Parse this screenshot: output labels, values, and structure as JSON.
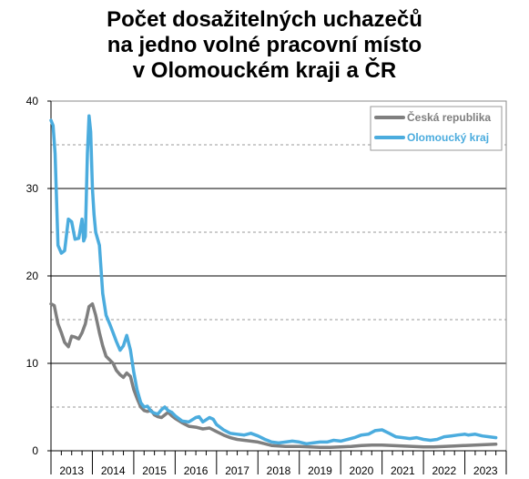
{
  "chart_data": {
    "type": "line",
    "title_lines": [
      "Počet dosažitelných uchazečů",
      "na jedno volné pracovní místo",
      "v Olomouckém kraji a ČR"
    ],
    "xlabel": "",
    "ylabel": "",
    "ylim": [
      0,
      40
    ],
    "y_ticks": [
      0,
      10,
      20,
      30,
      40
    ],
    "y_minor_gridlines": [
      5,
      15,
      25,
      35
    ],
    "xlim": [
      2013,
      2024
    ],
    "x_tick_labels": [
      "2013",
      "2014",
      "2015",
      "2016",
      "2017",
      "2018",
      "2019",
      "2020",
      "2021",
      "2022",
      "2023"
    ],
    "grid": true,
    "legend_position": "top-right",
    "series": [
      {
        "name": "Česká republika",
        "color": "#7f7f7f",
        "points": [
          [
            2013.0,
            16.8
          ],
          [
            2013.08,
            16.6
          ],
          [
            2013.17,
            14.5
          ],
          [
            2013.25,
            13.5
          ],
          [
            2013.33,
            12.4
          ],
          [
            2013.42,
            11.9
          ],
          [
            2013.5,
            13.1
          ],
          [
            2013.58,
            13.0
          ],
          [
            2013.67,
            12.8
          ],
          [
            2013.75,
            13.5
          ],
          [
            2013.83,
            14.5
          ],
          [
            2013.92,
            16.5
          ],
          [
            2014.0,
            16.8
          ],
          [
            2014.08,
            15.5
          ],
          [
            2014.17,
            13.5
          ],
          [
            2014.25,
            12.0
          ],
          [
            2014.33,
            10.8
          ],
          [
            2014.42,
            10.4
          ],
          [
            2014.5,
            10.0
          ],
          [
            2014.58,
            9.2
          ],
          [
            2014.67,
            8.7
          ],
          [
            2014.75,
            8.4
          ],
          [
            2014.83,
            8.9
          ],
          [
            2014.92,
            8.5
          ],
          [
            2015.0,
            7.0
          ],
          [
            2015.08,
            6.0
          ],
          [
            2015.17,
            5.0
          ],
          [
            2015.25,
            4.6
          ],
          [
            2015.33,
            4.5
          ],
          [
            2015.42,
            4.6
          ],
          [
            2015.5,
            4.1
          ],
          [
            2015.58,
            3.9
          ],
          [
            2015.67,
            3.8
          ],
          [
            2015.75,
            4.1
          ],
          [
            2015.83,
            4.4
          ],
          [
            2015.92,
            4.0
          ],
          [
            2016.0,
            3.7
          ],
          [
            2016.17,
            3.2
          ],
          [
            2016.33,
            2.8
          ],
          [
            2016.5,
            2.7
          ],
          [
            2016.67,
            2.5
          ],
          [
            2016.83,
            2.6
          ],
          [
            2017.0,
            2.2
          ],
          [
            2017.17,
            1.8
          ],
          [
            2017.33,
            1.5
          ],
          [
            2017.5,
            1.3
          ],
          [
            2017.67,
            1.2
          ],
          [
            2017.83,
            1.1
          ],
          [
            2018.0,
            1.0
          ],
          [
            2018.17,
            0.8
          ],
          [
            2018.33,
            0.6
          ],
          [
            2018.5,
            0.55
          ],
          [
            2018.67,
            0.5
          ],
          [
            2018.83,
            0.5
          ],
          [
            2019.0,
            0.5
          ],
          [
            2019.25,
            0.45
          ],
          [
            2019.5,
            0.4
          ],
          [
            2019.75,
            0.4
          ],
          [
            2020.0,
            0.45
          ],
          [
            2020.25,
            0.5
          ],
          [
            2020.5,
            0.6
          ],
          [
            2020.75,
            0.65
          ],
          [
            2021.0,
            0.65
          ],
          [
            2021.25,
            0.6
          ],
          [
            2021.5,
            0.55
          ],
          [
            2021.75,
            0.5
          ],
          [
            2022.0,
            0.45
          ],
          [
            2022.25,
            0.45
          ],
          [
            2022.5,
            0.5
          ],
          [
            2022.75,
            0.55
          ],
          [
            2023.0,
            0.6
          ],
          [
            2023.25,
            0.65
          ],
          [
            2023.5,
            0.7
          ],
          [
            2023.75,
            0.75
          ]
        ]
      },
      {
        "name": "Olomoucký kraj",
        "color": "#4bacde",
        "points": [
          [
            2013.0,
            37.8
          ],
          [
            2013.05,
            37.2
          ],
          [
            2013.1,
            34.0
          ],
          [
            2013.17,
            23.5
          ],
          [
            2013.25,
            22.6
          ],
          [
            2013.33,
            22.9
          ],
          [
            2013.42,
            26.5
          ],
          [
            2013.5,
            26.2
          ],
          [
            2013.58,
            24.2
          ],
          [
            2013.67,
            24.3
          ],
          [
            2013.75,
            26.5
          ],
          [
            2013.79,
            24.0
          ],
          [
            2013.83,
            24.5
          ],
          [
            2013.88,
            34.0
          ],
          [
            2013.92,
            38.3
          ],
          [
            2013.96,
            36.5
          ],
          [
            2014.0,
            30.0
          ],
          [
            2014.04,
            27.0
          ],
          [
            2014.08,
            25.0
          ],
          [
            2014.17,
            23.5
          ],
          [
            2014.25,
            18.0
          ],
          [
            2014.33,
            15.5
          ],
          [
            2014.42,
            14.5
          ],
          [
            2014.5,
            13.5
          ],
          [
            2014.58,
            12.5
          ],
          [
            2014.67,
            11.5
          ],
          [
            2014.75,
            12.0
          ],
          [
            2014.83,
            13.2
          ],
          [
            2014.92,
            11.5
          ],
          [
            2015.0,
            9.0
          ],
          [
            2015.08,
            7.0
          ],
          [
            2015.17,
            5.5
          ],
          [
            2015.25,
            5.0
          ],
          [
            2015.33,
            5.1
          ],
          [
            2015.42,
            4.5
          ],
          [
            2015.5,
            4.3
          ],
          [
            2015.58,
            4.2
          ],
          [
            2015.67,
            4.7
          ],
          [
            2015.75,
            5.0
          ],
          [
            2015.83,
            4.6
          ],
          [
            2015.92,
            4.4
          ],
          [
            2016.0,
            4.0
          ],
          [
            2016.17,
            3.4
          ],
          [
            2016.33,
            3.3
          ],
          [
            2016.5,
            3.8
          ],
          [
            2016.58,
            3.9
          ],
          [
            2016.67,
            3.3
          ],
          [
            2016.83,
            3.8
          ],
          [
            2016.92,
            3.6
          ],
          [
            2017.0,
            3.0
          ],
          [
            2017.17,
            2.4
          ],
          [
            2017.33,
            2.0
          ],
          [
            2017.5,
            1.9
          ],
          [
            2017.67,
            1.8
          ],
          [
            2017.83,
            2.0
          ],
          [
            2018.0,
            1.7
          ],
          [
            2018.17,
            1.3
          ],
          [
            2018.33,
            1.0
          ],
          [
            2018.5,
            0.9
          ],
          [
            2018.67,
            1.0
          ],
          [
            2018.83,
            1.1
          ],
          [
            2019.0,
            1.0
          ],
          [
            2019.17,
            0.8
          ],
          [
            2019.33,
            0.9
          ],
          [
            2019.5,
            1.0
          ],
          [
            2019.67,
            1.0
          ],
          [
            2019.83,
            1.2
          ],
          [
            2020.0,
            1.1
          ],
          [
            2020.17,
            1.3
          ],
          [
            2020.33,
            1.5
          ],
          [
            2020.5,
            1.8
          ],
          [
            2020.67,
            1.9
          ],
          [
            2020.83,
            2.3
          ],
          [
            2021.0,
            2.4
          ],
          [
            2021.17,
            2.0
          ],
          [
            2021.33,
            1.6
          ],
          [
            2021.5,
            1.5
          ],
          [
            2021.67,
            1.4
          ],
          [
            2021.83,
            1.5
          ],
          [
            2022.0,
            1.3
          ],
          [
            2022.17,
            1.2
          ],
          [
            2022.33,
            1.3
          ],
          [
            2022.5,
            1.6
          ],
          [
            2022.67,
            1.7
          ],
          [
            2022.83,
            1.8
          ],
          [
            2023.0,
            1.9
          ],
          [
            2023.08,
            1.8
          ],
          [
            2023.25,
            1.9
          ],
          [
            2023.42,
            1.7
          ],
          [
            2023.58,
            1.6
          ],
          [
            2023.75,
            1.5
          ]
        ]
      }
    ]
  }
}
